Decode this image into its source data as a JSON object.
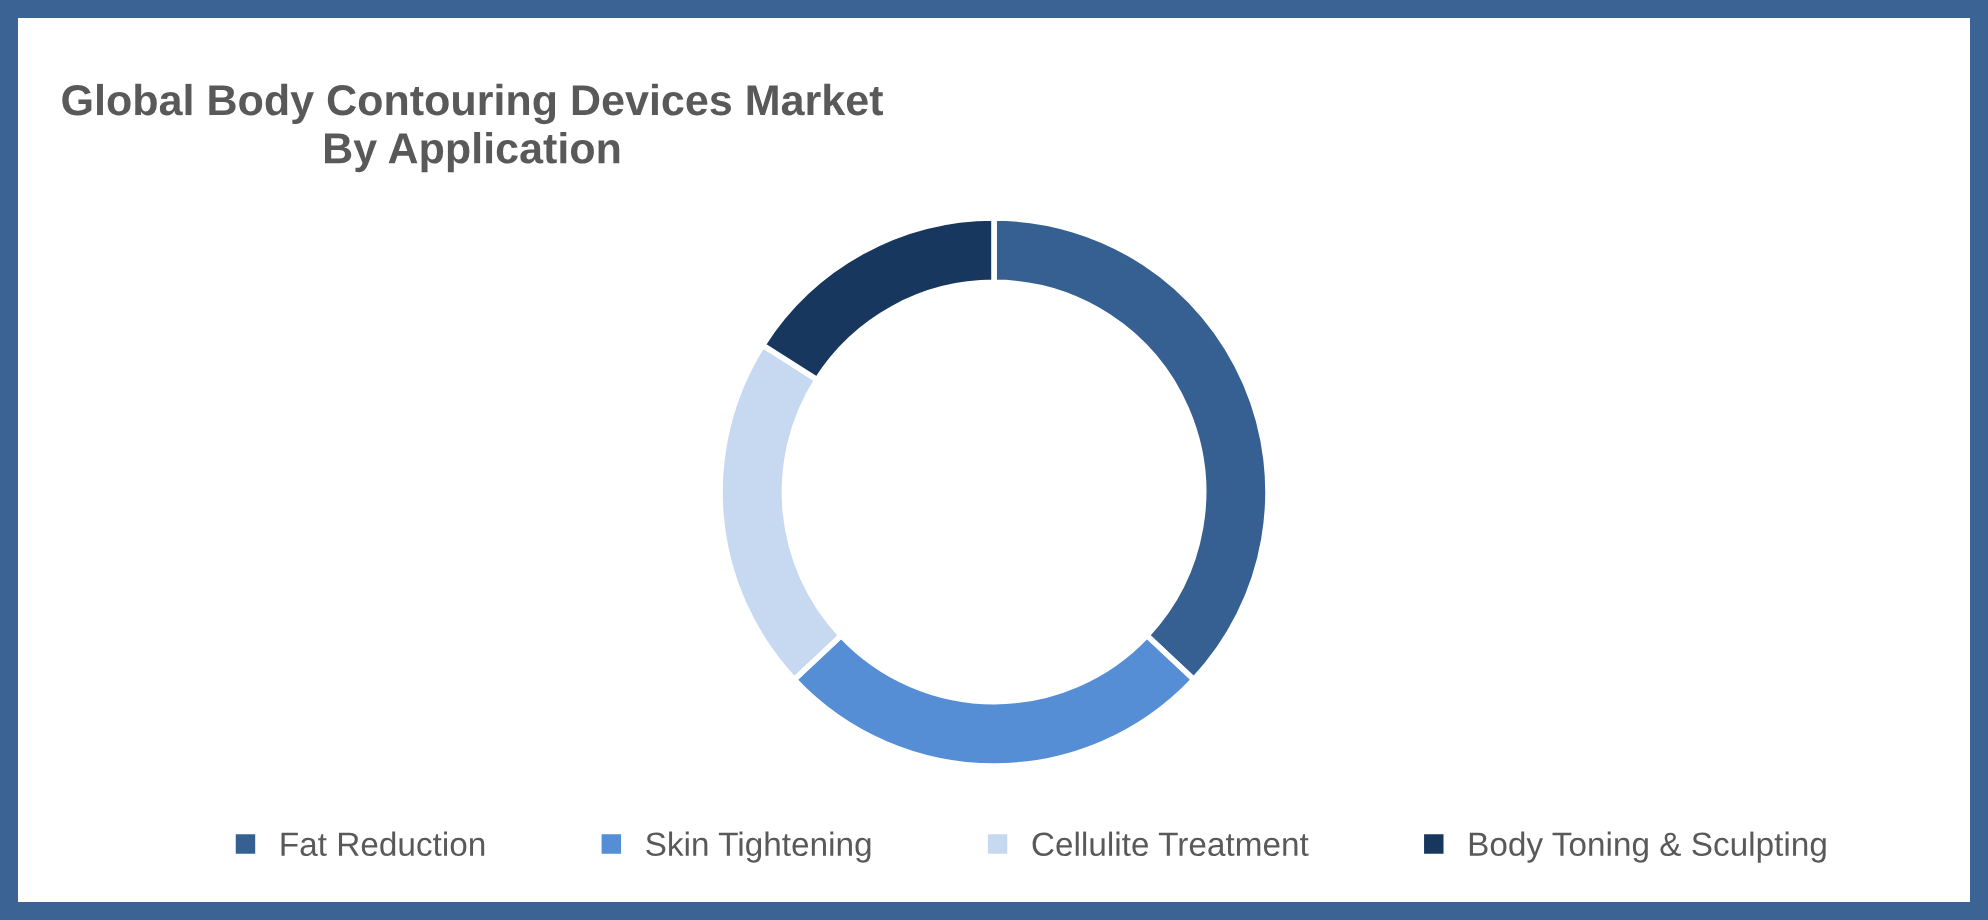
{
  "chart_data": {
    "type": "donut",
    "title": "Global Body Contouring Devices Market\nBy Application",
    "categories": [
      "Fat Reduction",
      "Skin Tightening",
      "Cellulite Treatment",
      "Body Toning & Sculpting"
    ],
    "values": [
      37,
      26,
      21,
      16
    ],
    "colors": [
      "#366092",
      "#558ed5",
      "#c6d9f1",
      "#17375e"
    ],
    "legend": "bottom"
  }
}
